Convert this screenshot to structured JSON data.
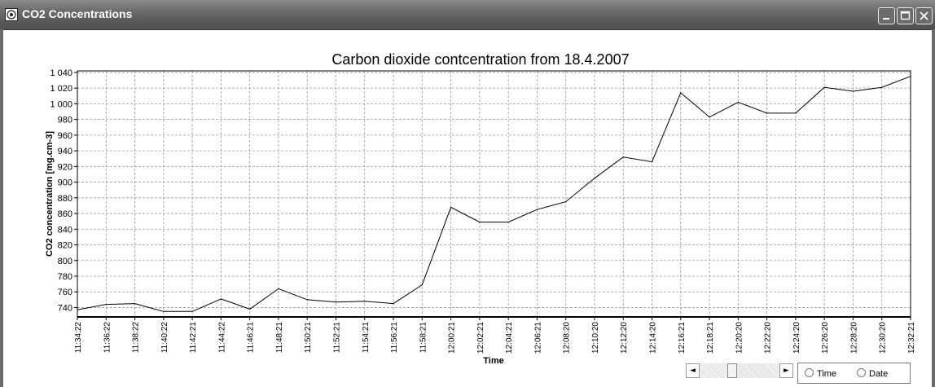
{
  "window": {
    "title": "CO2 Concentrations"
  },
  "chart_data": {
    "type": "line",
    "title": "Carbon dioxide contcentration from 18.4.2007",
    "xlabel": "Time",
    "ylabel": "CO2 concentration [mg.cm-3]",
    "ylim": [
      728,
      1042
    ],
    "yticks": [
      740,
      760,
      780,
      800,
      820,
      840,
      860,
      880,
      900,
      920,
      940,
      960,
      980,
      1000,
      1020,
      1040
    ],
    "ytick_labels": [
      "740",
      "760",
      "780",
      "800",
      "820",
      "840",
      "860",
      "880",
      "900",
      "920",
      "940",
      "960",
      "980",
      "1 000",
      "1 020",
      "1 040"
    ],
    "grid": true,
    "categories": [
      "11:34:22",
      "11:36:22",
      "11:38:22",
      "11:40:22",
      "11:42:21",
      "11:44:22",
      "11:46:21",
      "11:48:21",
      "11:50:21",
      "11:52:21",
      "11:54:21",
      "11:56:21",
      "11:58:21",
      "12:00:21",
      "12:02:21",
      "12:04:21",
      "12:06:21",
      "12:08:20",
      "12:10:20",
      "12:12:20",
      "12:14:20",
      "12:16:21",
      "12:18:21",
      "12:20:20",
      "12:22:20",
      "12:24:20",
      "12:26:20",
      "12:28:20",
      "12:30:20",
      "12:32:21"
    ],
    "series": [
      {
        "values": [
          737,
          744,
          745,
          735,
          735,
          751,
          738,
          764,
          750,
          747,
          748,
          745,
          769,
          868,
          849,
          849,
          865,
          875,
          905,
          932,
          926,
          1014,
          983,
          1002,
          988,
          988,
          1021,
          1016,
          1021,
          1035
        ]
      }
    ]
  },
  "controls": {
    "scroll_left": "◄",
    "scroll_right": "►",
    "radio_time": "Time",
    "radio_date": "Date"
  }
}
